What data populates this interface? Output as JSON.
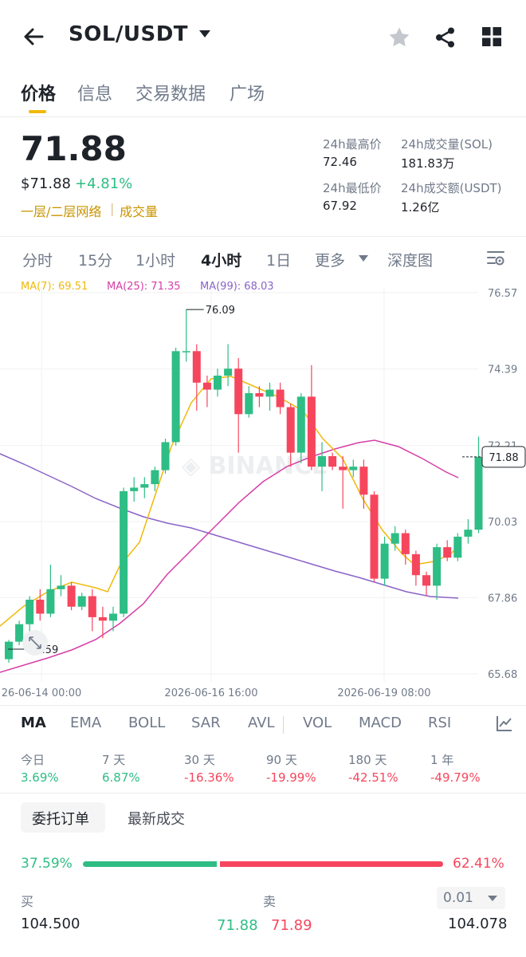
{
  "header": {
    "title": "SOL/USDT",
    "icons": {
      "back": "arrow-left-icon",
      "favorite": "star-icon",
      "share": "share-icon",
      "grid": "grid-icon"
    }
  },
  "tabs": [
    {
      "label": "价格",
      "active": true
    },
    {
      "label": "信息",
      "active": false
    },
    {
      "label": "交易数据",
      "active": false
    },
    {
      "label": "广场",
      "active": false
    }
  ],
  "price": {
    "last": "71.88",
    "usd": "$71.88",
    "change_pct": "+4.81%",
    "tag_network": "一层/二层网络",
    "tag_volume": "成交量",
    "tag_sep": "|"
  },
  "stats": {
    "high_label": "24h最高价",
    "high_value": "72.46",
    "vol_sol_label": "24h成交量(SOL)",
    "vol_sol_value": "181.83万",
    "low_label": "24h最低价",
    "low_value": "67.92",
    "vol_usdt_label": "24h成交额(USDT)",
    "vol_usdt_value": "1.26亿"
  },
  "intervals": [
    "分时",
    "15分",
    "1小时",
    "4小时",
    "1日",
    "更多",
    "深度图"
  ],
  "active_interval": "4小时",
  "ma_legend": {
    "ma7": "MA(7): 69.51",
    "ma25": "MA(25): 71.35",
    "ma99": "MA(99): 68.03"
  },
  "colors": {
    "up": "#2ebd85",
    "down": "#f6465d",
    "ma7": "#f0b90b",
    "ma25": "#d63fa8",
    "ma99": "#8a63c8",
    "accent": "#f0b90b"
  },
  "chart_data": {
    "type": "candlestick",
    "y_ticks": [
      "76.57",
      "74.39",
      "72.21",
      "70.03",
      "67.86",
      "65.68"
    ],
    "ylim": [
      65.68,
      76.57
    ],
    "x_ticks": [
      "26-06-14 00:00",
      "2026-06-16 16:00",
      "2026-06-19 08:00"
    ],
    "current_price_label": "71.88",
    "high_label": "76.09",
    "low_label": "65.59",
    "candles": [
      [
        66.1,
        66.6,
        66.0,
        66.65
      ],
      [
        66.6,
        67.1,
        66.5,
        67.2
      ],
      [
        67.1,
        67.8,
        66.9,
        67.9
      ],
      [
        67.8,
        67.4,
        67.2,
        68.1
      ],
      [
        67.4,
        68.1,
        67.3,
        68.8
      ],
      [
        68.1,
        68.2,
        67.9,
        68.5
      ],
      [
        68.2,
        67.6,
        67.5,
        68.3
      ],
      [
        67.6,
        67.9,
        67.5,
        68.0
      ],
      [
        67.9,
        67.3,
        66.9,
        68.1
      ],
      [
        67.3,
        67.2,
        66.7,
        67.6
      ],
      [
        67.2,
        67.4,
        66.9,
        67.6
      ],
      [
        67.4,
        70.9,
        67.3,
        71.0
      ],
      [
        70.9,
        71.0,
        70.6,
        71.3
      ],
      [
        71.0,
        71.1,
        70.7,
        71.3
      ],
      [
        71.1,
        71.5,
        70.9,
        71.6
      ],
      [
        71.5,
        72.3,
        71.4,
        72.4
      ],
      [
        72.3,
        74.9,
        72.2,
        75.0
      ],
      [
        74.9,
        74.9,
        74.6,
        76.09
      ],
      [
        74.9,
        74.0,
        73.2,
        75.1
      ],
      [
        74.0,
        73.8,
        73.3,
        74.2
      ],
      [
        73.8,
        74.2,
        73.6,
        74.4
      ],
      [
        74.2,
        74.4,
        73.9,
        75.1
      ],
      [
        74.4,
        73.1,
        72.0,
        74.7
      ],
      [
        73.1,
        73.7,
        73.0,
        73.9
      ],
      [
        73.7,
        73.6,
        73.3,
        73.9
      ],
      [
        73.6,
        73.8,
        73.2,
        74.0
      ],
      [
        73.8,
        73.3,
        73.1,
        74.0
      ],
      [
        73.3,
        72.0,
        71.6,
        73.4
      ],
      [
        72.0,
        73.6,
        71.7,
        73.7
      ],
      [
        73.6,
        71.6,
        71.5,
        74.5
      ],
      [
        71.6,
        71.9,
        70.9,
        72.3
      ],
      [
        71.9,
        71.6,
        71.5,
        72.0
      ],
      [
        71.6,
        71.5,
        70.4,
        71.9
      ],
      [
        71.5,
        71.6,
        71.3,
        71.8
      ],
      [
        71.6,
        70.8,
        70.4,
        71.8
      ],
      [
        70.8,
        68.4,
        68.3,
        70.9
      ],
      [
        68.4,
        69.4,
        68.2,
        69.6
      ],
      [
        69.4,
        69.7,
        69.2,
        69.9
      ],
      [
        69.7,
        69.1,
        68.8,
        69.8
      ],
      [
        69.1,
        68.5,
        68.2,
        69.2
      ],
      [
        68.5,
        68.2,
        67.9,
        68.6
      ],
      [
        68.2,
        69.3,
        67.8,
        69.4
      ],
      [
        69.3,
        69.0,
        68.9,
        69.5
      ],
      [
        69.0,
        69.6,
        68.9,
        69.7
      ],
      [
        69.6,
        69.8,
        69.4,
        70.1
      ],
      [
        69.8,
        71.88,
        69.7,
        72.46
      ]
    ]
  },
  "indicators": {
    "main": [
      "MA",
      "EMA",
      "BOLL",
      "SAR",
      "AVL"
    ],
    "sub": [
      "VOL",
      "MACD",
      "RSI"
    ],
    "active": "MA"
  },
  "performance": [
    {
      "label": "今日",
      "value": "3.69%"
    },
    {
      "label": "7 天",
      "value": "6.87%"
    },
    {
      "label": "30 天",
      "value": "-16.36%"
    },
    {
      "label": "90 天",
      "value": "-19.99%"
    },
    {
      "label": "180 天",
      "value": "-42.51%"
    },
    {
      "label": "1 年",
      "value": "-49.79%"
    }
  ],
  "orderbook": {
    "tabs": [
      "委托订单",
      "最新成交"
    ],
    "buy_ratio": "37.59%",
    "sell_ratio": "62.41%",
    "buy_label": "买",
    "sell_label": "卖",
    "precision": "0.01",
    "rows": [
      {
        "buy_qty": "104.500",
        "buy_price": "71.88",
        "sell_price": "71.89",
        "sell_qty": "104.078"
      }
    ]
  }
}
